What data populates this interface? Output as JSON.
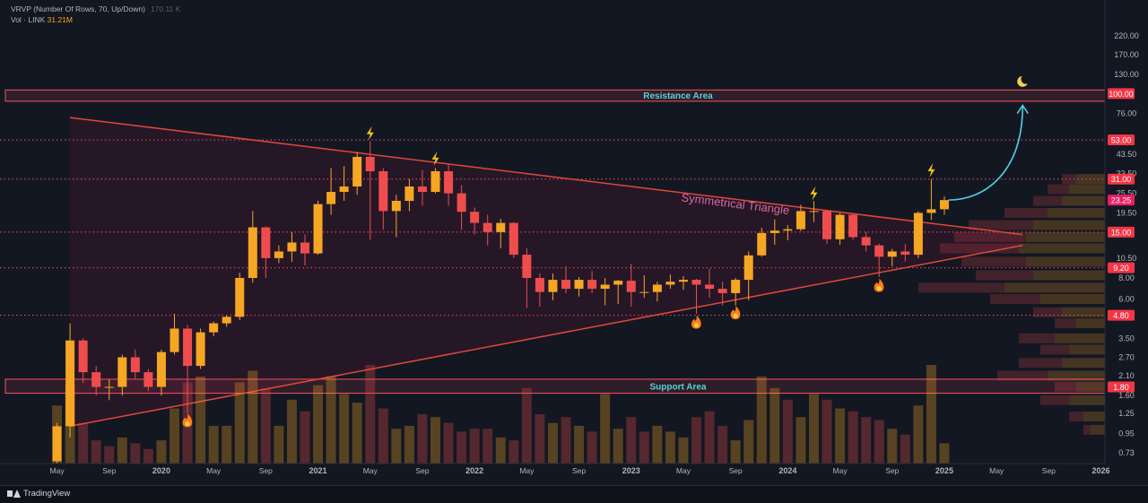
{
  "legend": {
    "vrvp": "VRVP (Number Of Rows, 70, Up/Down)",
    "vrvp_value": "170.11 K",
    "vol_label": "Vol · LINK",
    "vol_value": "31.21M"
  },
  "branding": {
    "label": "TradingView"
  },
  "colors": {
    "up": "#f5a623",
    "down": "#ef4d4d",
    "bg": "#131722",
    "zone": "#f7525f",
    "triangle": "#e0473a",
    "arrow": "#4dd0e1"
  },
  "chart_data": {
    "type": "candlestick",
    "title": "",
    "scale": "log",
    "ylim": [
      0.63,
      360
    ],
    "xlim": [
      "2019-04",
      "2026-05"
    ],
    "y_ticks": [
      0.73,
      0.95,
      1.25,
      1.6,
      2.1,
      2.7,
      3.5,
      6.0,
      8.0,
      10.5,
      19.5,
      25.5,
      33.5,
      43.5,
      76.0,
      130.0,
      170.0,
      220.0
    ],
    "y_tick_labels": [
      "0.73",
      "0.95",
      "1.25",
      "1.60",
      "2.10",
      "2.70",
      "3.50",
      "6.00",
      "8.00",
      "10.50",
      "19.50",
      "25.50",
      "33.50",
      "43.50",
      "76.00",
      "130.00",
      "170.00",
      "220.00"
    ],
    "x_tick_labels": [
      "May",
      "Sep",
      "2020",
      "May",
      "Sep",
      "2021",
      "May",
      "Sep",
      "2022",
      "May",
      "Sep",
      "2023",
      "May",
      "Sep",
      "2024",
      "May",
      "Sep",
      "2025",
      "May",
      "Sep",
      "2026"
    ],
    "price_levels": [
      {
        "value": 100.0,
        "label": "100.00",
        "style": "solid"
      },
      {
        "value": 53.0,
        "label": "53.00",
        "style": "dotted"
      },
      {
        "value": 31.0,
        "label": "31.00",
        "style": "dotted"
      },
      {
        "value": 15.0,
        "label": "15.00",
        "style": "dotted"
      },
      {
        "value": 9.2,
        "label": "9.20",
        "style": "dotted"
      },
      {
        "value": 4.8,
        "label": "4.80",
        "style": "dotted"
      },
      {
        "value": 1.8,
        "label": "1.80",
        "style": "solid"
      }
    ],
    "current_price": {
      "value": 23.25,
      "label": "23.25"
    },
    "zones": [
      {
        "name": "Resistance Area",
        "low": 90,
        "high": 105
      },
      {
        "name": "Support Area",
        "low": 1.65,
        "high": 2.0
      }
    ],
    "triangle": {
      "label": "Symmetrical Triangle",
      "upper": [
        [
          "2019-06",
          72
        ],
        [
          "2025-07",
          14.5
        ]
      ],
      "lower": [
        [
          "2019-06",
          1.05
        ],
        [
          "2025-07",
          12.5
        ]
      ]
    },
    "candles": [
      [
        "2019-05",
        0.65,
        1.1,
        0.6,
        1.05
      ],
      [
        "2019-06",
        1.05,
        4.3,
        0.9,
        3.4
      ],
      [
        "2019-07",
        3.4,
        3.5,
        1.9,
        2.2
      ],
      [
        "2019-08",
        2.2,
        2.4,
        1.6,
        1.8
      ],
      [
        "2019-09",
        1.8,
        2.0,
        1.5,
        1.8
      ],
      [
        "2019-10",
        1.8,
        2.8,
        1.6,
        2.7
      ],
      [
        "2019-11",
        2.7,
        3.0,
        2.0,
        2.2
      ],
      [
        "2019-12",
        2.2,
        2.3,
        1.7,
        1.8
      ],
      [
        "2020-01",
        1.8,
        3.0,
        1.6,
        2.9
      ],
      [
        "2020-02",
        2.9,
        4.9,
        2.8,
        4.0
      ],
      [
        "2020-03",
        4.0,
        4.2,
        1.25,
        2.4
      ],
      [
        "2020-04",
        2.4,
        4.0,
        2.3,
        3.8
      ],
      [
        "2020-05",
        3.8,
        4.4,
        3.6,
        4.3
      ],
      [
        "2020-06",
        4.3,
        4.8,
        4.1,
        4.7
      ],
      [
        "2020-07",
        4.7,
        8.6,
        4.5,
        8.0
      ],
      [
        "2020-08",
        8.0,
        20.0,
        7.5,
        16.0
      ],
      [
        "2020-09",
        16.0,
        16.2,
        8.0,
        10.5
      ],
      [
        "2020-10",
        10.5,
        12.5,
        9.8,
        11.5
      ],
      [
        "2020-11",
        11.5,
        15.0,
        10.0,
        13.0
      ],
      [
        "2020-12",
        13.0,
        14.5,
        9.5,
        11.2
      ],
      [
        "2021-01",
        11.2,
        23.0,
        11.0,
        22.0
      ],
      [
        "2021-02",
        22.0,
        36.0,
        19.0,
        26.0
      ],
      [
        "2021-03",
        26.0,
        37.0,
        23.0,
        28.0
      ],
      [
        "2021-04",
        28.0,
        45.0,
        25.0,
        42.0
      ],
      [
        "2021-05",
        42.0,
        52.0,
        13.5,
        34.5
      ],
      [
        "2021-06",
        34.5,
        36.0,
        15.5,
        20.0
      ],
      [
        "2021-07",
        20.0,
        25.0,
        14.0,
        23.0
      ],
      [
        "2021-08",
        23.0,
        31.0,
        20.0,
        28.0
      ],
      [
        "2021-09",
        28.0,
        35.0,
        21.5,
        26.0
      ],
      [
        "2021-10",
        26.0,
        36.0,
        25.5,
        34.5
      ],
      [
        "2021-11",
        34.5,
        38.0,
        21.5,
        25.5
      ],
      [
        "2021-12",
        25.5,
        28.5,
        15.5,
        19.8
      ],
      [
        "2022-01",
        19.8,
        21.0,
        14.5,
        17.0
      ],
      [
        "2022-02",
        17.0,
        19.0,
        12.5,
        15.0
      ],
      [
        "2022-03",
        15.0,
        18.0,
        12.0,
        17.0
      ],
      [
        "2022-04",
        17.0,
        17.2,
        10.5,
        11.0
      ],
      [
        "2022-05",
        11.0,
        12.0,
        5.3,
        8.0
      ],
      [
        "2022-06",
        8.0,
        8.5,
        5.4,
        6.6
      ],
      [
        "2022-07",
        6.6,
        8.5,
        5.9,
        7.8
      ],
      [
        "2022-08",
        7.8,
        9.4,
        6.5,
        6.9
      ],
      [
        "2022-09",
        6.9,
        8.1,
        6.2,
        7.8
      ],
      [
        "2022-10",
        7.8,
        8.8,
        6.5,
        6.9
      ],
      [
        "2022-11",
        6.9,
        8.0,
        5.5,
        7.3
      ],
      [
        "2022-12",
        7.3,
        7.8,
        5.6,
        7.7
      ],
      [
        "2023-01",
        7.7,
        9.7,
        5.4,
        6.6
      ],
      [
        "2023-02",
        6.6,
        8.3,
        6.1,
        6.6
      ],
      [
        "2023-03",
        6.6,
        7.6,
        5.8,
        7.3
      ],
      [
        "2023-04",
        7.3,
        8.4,
        6.9,
        7.6
      ],
      [
        "2023-05",
        7.6,
        8.2,
        6.8,
        7.8
      ],
      [
        "2023-06",
        7.8,
        7.9,
        4.9,
        7.3
      ],
      [
        "2023-07",
        7.3,
        9.1,
        6.1,
        6.9
      ],
      [
        "2023-08",
        6.9,
        7.6,
        5.5,
        6.5
      ],
      [
        "2023-09",
        6.5,
        8.0,
        5.5,
        7.8
      ],
      [
        "2023-10",
        7.8,
        11.5,
        5.9,
        10.9
      ],
      [
        "2023-11",
        10.9,
        15.9,
        10.7,
        14.8
      ],
      [
        "2023-12",
        14.8,
        17.8,
        12.6,
        15.3
      ],
      [
        "2024-01",
        15.3,
        16.5,
        13.4,
        15.6
      ],
      [
        "2024-02",
        15.6,
        21.8,
        15.2,
        20.0
      ],
      [
        "2024-03",
        20.0,
        22.9,
        17.2,
        20.0
      ],
      [
        "2024-04",
        20.0,
        20.1,
        12.8,
        13.6
      ],
      [
        "2024-05",
        13.6,
        19.5,
        12.6,
        19.0
      ],
      [
        "2024-06",
        19.0,
        19.2,
        13.5,
        14.0
      ],
      [
        "2024-07",
        14.0,
        15.0,
        11.5,
        12.5
      ],
      [
        "2024-08",
        12.5,
        12.8,
        8.1,
        10.7
      ],
      [
        "2024-09",
        10.7,
        11.9,
        9.4,
        11.5
      ],
      [
        "2024-10",
        11.5,
        12.7,
        10.0,
        11.0
      ],
      [
        "2024-11",
        11.0,
        20.0,
        10.5,
        19.5
      ],
      [
        "2024-12",
        19.5,
        31.0,
        17.7,
        20.5
      ],
      [
        "2025-01",
        20.5,
        24.5,
        19.0,
        23.25
      ]
    ],
    "volume": [
      [
        "2019-05",
        0.2,
        "up"
      ],
      [
        "2019-06",
        0.27,
        "up"
      ],
      [
        "2019-07",
        0.14,
        "down"
      ],
      [
        "2019-08",
        0.08,
        "down"
      ],
      [
        "2019-09",
        0.06,
        "down"
      ],
      [
        "2019-10",
        0.09,
        "up"
      ],
      [
        "2019-11",
        0.07,
        "down"
      ],
      [
        "2019-12",
        0.05,
        "down"
      ],
      [
        "2020-01",
        0.08,
        "up"
      ],
      [
        "2020-02",
        0.19,
        "up"
      ],
      [
        "2020-03",
        0.28,
        "down"
      ],
      [
        "2020-04",
        0.3,
        "up"
      ],
      [
        "2020-05",
        0.13,
        "up"
      ],
      [
        "2020-06",
        0.13,
        "up"
      ],
      [
        "2020-07",
        0.28,
        "up"
      ],
      [
        "2020-08",
        0.32,
        "up"
      ],
      [
        "2020-09",
        0.26,
        "down"
      ],
      [
        "2020-10",
        0.13,
        "up"
      ],
      [
        "2020-11",
        0.22,
        "up"
      ],
      [
        "2020-12",
        0.18,
        "down"
      ],
      [
        "2021-01",
        0.27,
        "up"
      ],
      [
        "2021-02",
        0.3,
        "up"
      ],
      [
        "2021-03",
        0.24,
        "up"
      ],
      [
        "2021-04",
        0.21,
        "up"
      ],
      [
        "2021-05",
        0.34,
        "down"
      ],
      [
        "2021-06",
        0.19,
        "down"
      ],
      [
        "2021-07",
        0.12,
        "up"
      ],
      [
        "2021-08",
        0.13,
        "up"
      ],
      [
        "2021-09",
        0.17,
        "down"
      ],
      [
        "2021-10",
        0.16,
        "up"
      ],
      [
        "2021-11",
        0.14,
        "down"
      ],
      [
        "2021-12",
        0.11,
        "down"
      ],
      [
        "2022-01",
        0.12,
        "down"
      ],
      [
        "2022-02",
        0.12,
        "down"
      ],
      [
        "2022-03",
        0.09,
        "up"
      ],
      [
        "2022-04",
        0.08,
        "down"
      ],
      [
        "2022-05",
        0.26,
        "down"
      ],
      [
        "2022-06",
        0.17,
        "down"
      ],
      [
        "2022-07",
        0.14,
        "up"
      ],
      [
        "2022-08",
        0.16,
        "down"
      ],
      [
        "2022-09",
        0.13,
        "up"
      ],
      [
        "2022-10",
        0.11,
        "down"
      ],
      [
        "2022-11",
        0.24,
        "up"
      ],
      [
        "2022-12",
        0.12,
        "up"
      ],
      [
        "2023-01",
        0.16,
        "down"
      ],
      [
        "2023-02",
        0.11,
        "down"
      ],
      [
        "2023-03",
        0.13,
        "up"
      ],
      [
        "2023-04",
        0.11,
        "up"
      ],
      [
        "2023-05",
        0.09,
        "up"
      ],
      [
        "2023-06",
        0.16,
        "down"
      ],
      [
        "2023-07",
        0.18,
        "down"
      ],
      [
        "2023-08",
        0.13,
        "down"
      ],
      [
        "2023-09",
        0.08,
        "up"
      ],
      [
        "2023-10",
        0.15,
        "up"
      ],
      [
        "2023-11",
        0.3,
        "up"
      ],
      [
        "2023-12",
        0.26,
        "up"
      ],
      [
        "2024-01",
        0.22,
        "down"
      ],
      [
        "2024-02",
        0.16,
        "up"
      ],
      [
        "2024-03",
        0.24,
        "up"
      ],
      [
        "2024-04",
        0.22,
        "down"
      ],
      [
        "2024-05",
        0.19,
        "up"
      ],
      [
        "2024-06",
        0.18,
        "down"
      ],
      [
        "2024-07",
        0.16,
        "down"
      ],
      [
        "2024-08",
        0.15,
        "down"
      ],
      [
        "2024-09",
        0.12,
        "up"
      ],
      [
        "2024-10",
        0.1,
        "down"
      ],
      [
        "2024-11",
        0.2,
        "up"
      ],
      [
        "2024-12",
        0.34,
        "up"
      ],
      [
        "2025-01",
        0.07,
        "up"
      ]
    ],
    "markers": [
      {
        "icon": "bolt-icon",
        "date": "2021-05",
        "price": 58
      },
      {
        "icon": "bolt-icon",
        "date": "2021-10",
        "price": 41
      },
      {
        "icon": "bolt-icon",
        "date": "2024-03",
        "price": 25.5
      },
      {
        "icon": "bolt-icon",
        "date": "2024-12",
        "price": 35
      },
      {
        "icon": "fire-icon",
        "date": "2020-03",
        "price": 1.13
      },
      {
        "icon": "fire-icon",
        "date": "2023-06",
        "price": 4.35
      },
      {
        "icon": "fire-icon",
        "date": "2023-09",
        "price": 4.95
      },
      {
        "icon": "fire-icon",
        "date": "2024-08",
        "price": 7.2
      },
      {
        "icon": "moon-icon",
        "date": "2025-07",
        "price": 118
      }
    ],
    "projection": {
      "from": [
        "2025-02",
        23.25
      ],
      "to": [
        "2025-07",
        85
      ]
    },
    "volume_profile": [
      {
        "price": 31.0,
        "up": 0.2,
        "down": 0.1
      },
      {
        "price": 27.0,
        "up": 0.25,
        "down": 0.15
      },
      {
        "price": 23.0,
        "up": 0.3,
        "down": 0.2
      },
      {
        "price": 19.5,
        "up": 0.4,
        "down": 0.3
      },
      {
        "price": 16.5,
        "up": 0.5,
        "down": 0.45
      },
      {
        "price": 14.0,
        "up": 0.55,
        "down": 0.5
      },
      {
        "price": 12.0,
        "up": 0.6,
        "down": 0.55
      },
      {
        "price": 10.0,
        "up": 0.55,
        "down": 0.45
      },
      {
        "price": 8.3,
        "up": 0.5,
        "down": 0.4
      },
      {
        "price": 7.0,
        "up": 0.7,
        "down": 0.6
      },
      {
        "price": 6.0,
        "up": 0.45,
        "down": 0.35
      },
      {
        "price": 5.0,
        "up": 0.3,
        "down": 0.2
      },
      {
        "price": 4.3,
        "up": 0.2,
        "down": 0.15
      },
      {
        "price": 3.5,
        "up": 0.35,
        "down": 0.25
      },
      {
        "price": 3.0,
        "up": 0.25,
        "down": 0.2
      },
      {
        "price": 2.5,
        "up": 0.3,
        "down": 0.3
      },
      {
        "price": 2.1,
        "up": 0.4,
        "down": 0.35
      },
      {
        "price": 1.8,
        "up": 0.2,
        "down": 0.15
      },
      {
        "price": 1.5,
        "up": 0.25,
        "down": 0.2
      },
      {
        "price": 1.2,
        "up": 0.15,
        "down": 0.1
      },
      {
        "price": 1.0,
        "up": 0.1,
        "down": 0.05
      }
    ]
  }
}
